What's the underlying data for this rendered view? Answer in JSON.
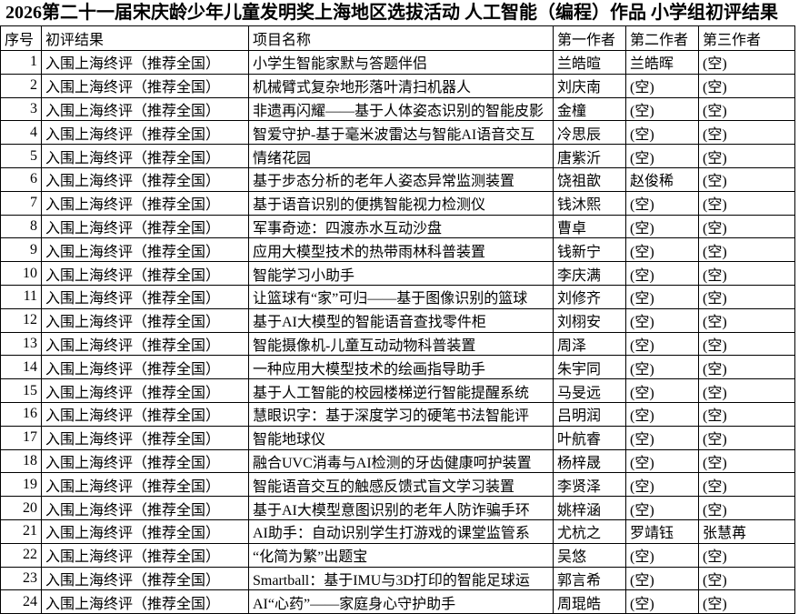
{
  "title": "2026第二十一届宋庆龄少年儿童发明奖上海地区选拔活动 人工智能（编程）作品 小学组初评结果",
  "colors": {
    "background": "#ffffff",
    "border": "#000000",
    "text": "#000000"
  },
  "table": {
    "columns": [
      "序号",
      "初评结果",
      "项目名称",
      "第一作者",
      "第二作者",
      "第三作者"
    ],
    "rows": [
      {
        "no": "1",
        "result": "入围上海终评（推荐全国）",
        "project": "小学生智能家默与答题伴侣",
        "a1": "兰皓暄",
        "a2": "兰皓晖",
        "a3": "(空)"
      },
      {
        "no": "2",
        "result": "入围上海终评（推荐全国）",
        "project": "机械臂式复杂地形落叶清扫机器人",
        "a1": "刘庆南",
        "a2": "(空)",
        "a3": "(空)"
      },
      {
        "no": "3",
        "result": "入围上海终评（推荐全国）",
        "project": "非遗再闪耀——基于人体姿态识别的智能皮影",
        "a1": "金橦",
        "a2": "(空)",
        "a3": "(空)"
      },
      {
        "no": "4",
        "result": "入围上海终评（推荐全国）",
        "project": "智爱守护-基于毫米波雷达与智能AI语音交互",
        "a1": "冷思辰",
        "a2": "(空)",
        "a3": "(空)"
      },
      {
        "no": "5",
        "result": "入围上海终评（推荐全国）",
        "project": "情绪花园",
        "a1": "唐紫沂",
        "a2": "(空)",
        "a3": "(空)"
      },
      {
        "no": "6",
        "result": "入围上海终评（推荐全国）",
        "project": "基于步态分析的老年人姿态异常监测装置",
        "a1": "饶祖歆",
        "a2": "赵俊稀",
        "a3": "(空)"
      },
      {
        "no": "7",
        "result": "入围上海终评（推荐全国）",
        "project": "基于语音识别的便携智能视力检测仪",
        "a1": "钱沐熙",
        "a2": "(空)",
        "a3": "(空)"
      },
      {
        "no": "8",
        "result": "入围上海终评（推荐全国）",
        "project": "军事奇迹：四渡赤水互动沙盘",
        "a1": "曹卓",
        "a2": "(空)",
        "a3": "(空)"
      },
      {
        "no": "9",
        "result": "入围上海终评（推荐全国）",
        "project": "应用大模型技术的热带雨林科普装置",
        "a1": "钱新宁",
        "a2": "(空)",
        "a3": "(空)"
      },
      {
        "no": "10",
        "result": "入围上海终评（推荐全国）",
        "project": "智能学习小助手",
        "a1": "李庆满",
        "a2": "(空)",
        "a3": "(空)"
      },
      {
        "no": "11",
        "result": "入围上海终评（推荐全国）",
        "project": "让篮球有“家”可归——基于图像识别的篮球",
        "a1": "刘修齐",
        "a2": "(空)",
        "a3": "(空)"
      },
      {
        "no": "12",
        "result": "入围上海终评（推荐全国）",
        "project": "基于AI大模型的智能语音查找零件柜",
        "a1": "刘栩安",
        "a2": "(空)",
        "a3": "(空)"
      },
      {
        "no": "13",
        "result": "入围上海终评（推荐全国）",
        "project": "智能摄像机-儿童互动动物科普装置",
        "a1": "周泽",
        "a2": "(空)",
        "a3": "(空)"
      },
      {
        "no": "14",
        "result": "入围上海终评（推荐全国）",
        "project": "一种应用大模型技术的绘画指导助手",
        "a1": "朱宇同",
        "a2": "(空)",
        "a3": "(空)"
      },
      {
        "no": "15",
        "result": "入围上海终评（推荐全国）",
        "project": "基于人工智能的校园楼梯逆行智能提醒系统",
        "a1": "马旻远",
        "a2": "(空)",
        "a3": "(空)"
      },
      {
        "no": "16",
        "result": "入围上海终评（推荐全国）",
        "project": "慧眼识字：基于深度学习的硬笔书法智能评",
        "a1": "吕明润",
        "a2": "(空)",
        "a3": "(空)"
      },
      {
        "no": "17",
        "result": "入围上海终评（推荐全国）",
        "project": "智能地球仪",
        "a1": "叶航睿",
        "a2": "(空)",
        "a3": "(空)"
      },
      {
        "no": "18",
        "result": "入围上海终评（推荐全国）",
        "project": "融合UVC消毒与AI检测的牙齿健康呵护装置",
        "a1": "杨梓晟",
        "a2": "(空)",
        "a3": "(空)"
      },
      {
        "no": "19",
        "result": "入围上海终评（推荐全国）",
        "project": "智能语音交互的触感反馈式盲文学习装置",
        "a1": "李贤泽",
        "a2": "(空)",
        "a3": "(空)"
      },
      {
        "no": "20",
        "result": "入围上海终评（推荐全国）",
        "project": "基于AI大模型意图识别的老年人防诈骗手环",
        "a1": "姚梓涵",
        "a2": "(空)",
        "a3": "(空)"
      },
      {
        "no": "21",
        "result": "入围上海终评（推荐全国）",
        "project": "AI助手：自动识别学生打游戏的课堂监管系",
        "a1": "尤杭之",
        "a2": "罗靖钰",
        "a3": "张慧苒"
      },
      {
        "no": "22",
        "result": "入围上海终评（推荐全国）",
        "project": "“化简为繁”出题宝",
        "a1": "吴悠",
        "a2": "(空)",
        "a3": "(空)"
      },
      {
        "no": "23",
        "result": "入围上海终评（推荐全国）",
        "project": "Smartball：基于IMU与3D打印的智能足球运",
        "a1": "郭言希",
        "a2": "(空)",
        "a3": "(空)"
      },
      {
        "no": "24",
        "result": "入围上海终评（推荐全国）",
        "project": "AI“心药”——家庭身心守护助手",
        "a1": "周琨皓",
        "a2": "(空)",
        "a3": "(空)"
      }
    ]
  }
}
